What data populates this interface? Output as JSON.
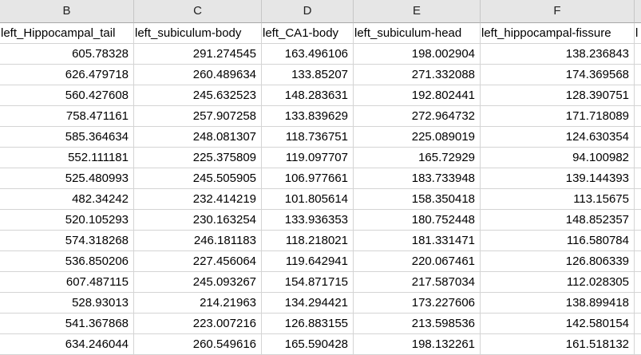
{
  "spreadsheet": {
    "column_letters": [
      "B",
      "C",
      "D",
      "E",
      "F",
      ""
    ],
    "header_row": [
      "left_Hippocampal_tail",
      "left_subiculum-body",
      "left_CA1-body",
      "left_subiculum-head",
      "left_hippocampal-fissure",
      "l"
    ],
    "rows": [
      [
        "605.78328",
        "291.274545",
        "163.496106",
        "198.002904",
        "138.236843"
      ],
      [
        "626.479718",
        "260.489634",
        "133.85207",
        "271.332088",
        "174.369568"
      ],
      [
        "560.427608",
        "245.632523",
        "148.283631",
        "192.802441",
        "128.390751"
      ],
      [
        "758.471161",
        "257.907258",
        "133.839629",
        "272.964732",
        "171.718089"
      ],
      [
        "585.364634",
        "248.081307",
        "118.736751",
        "225.089019",
        "124.630354"
      ],
      [
        "552.111181",
        "225.375809",
        "119.097707",
        "165.72929",
        "94.100982"
      ],
      [
        "525.480993",
        "245.505905",
        "106.977661",
        "183.733948",
        "139.144393"
      ],
      [
        "482.34242",
        "232.414219",
        "101.805614",
        "158.350418",
        "113.15675"
      ],
      [
        "520.105293",
        "230.163254",
        "133.936353",
        "180.752448",
        "148.852357"
      ],
      [
        "574.318268",
        "246.181183",
        "118.218021",
        "181.331471",
        "116.580784"
      ],
      [
        "536.850206",
        "227.456064",
        "119.642941",
        "220.067461",
        "126.806339"
      ],
      [
        "607.487115",
        "245.093267",
        "154.871715",
        "217.587034",
        "112.028305"
      ],
      [
        "528.93013",
        "214.21963",
        "134.294421",
        "173.227606",
        "138.899418"
      ],
      [
        "541.367868",
        "223.007216",
        "126.883155",
        "213.598536",
        "142.580154"
      ],
      [
        "634.246044",
        "260.549616",
        "165.590428",
        "198.132261",
        "161.518132"
      ]
    ]
  }
}
